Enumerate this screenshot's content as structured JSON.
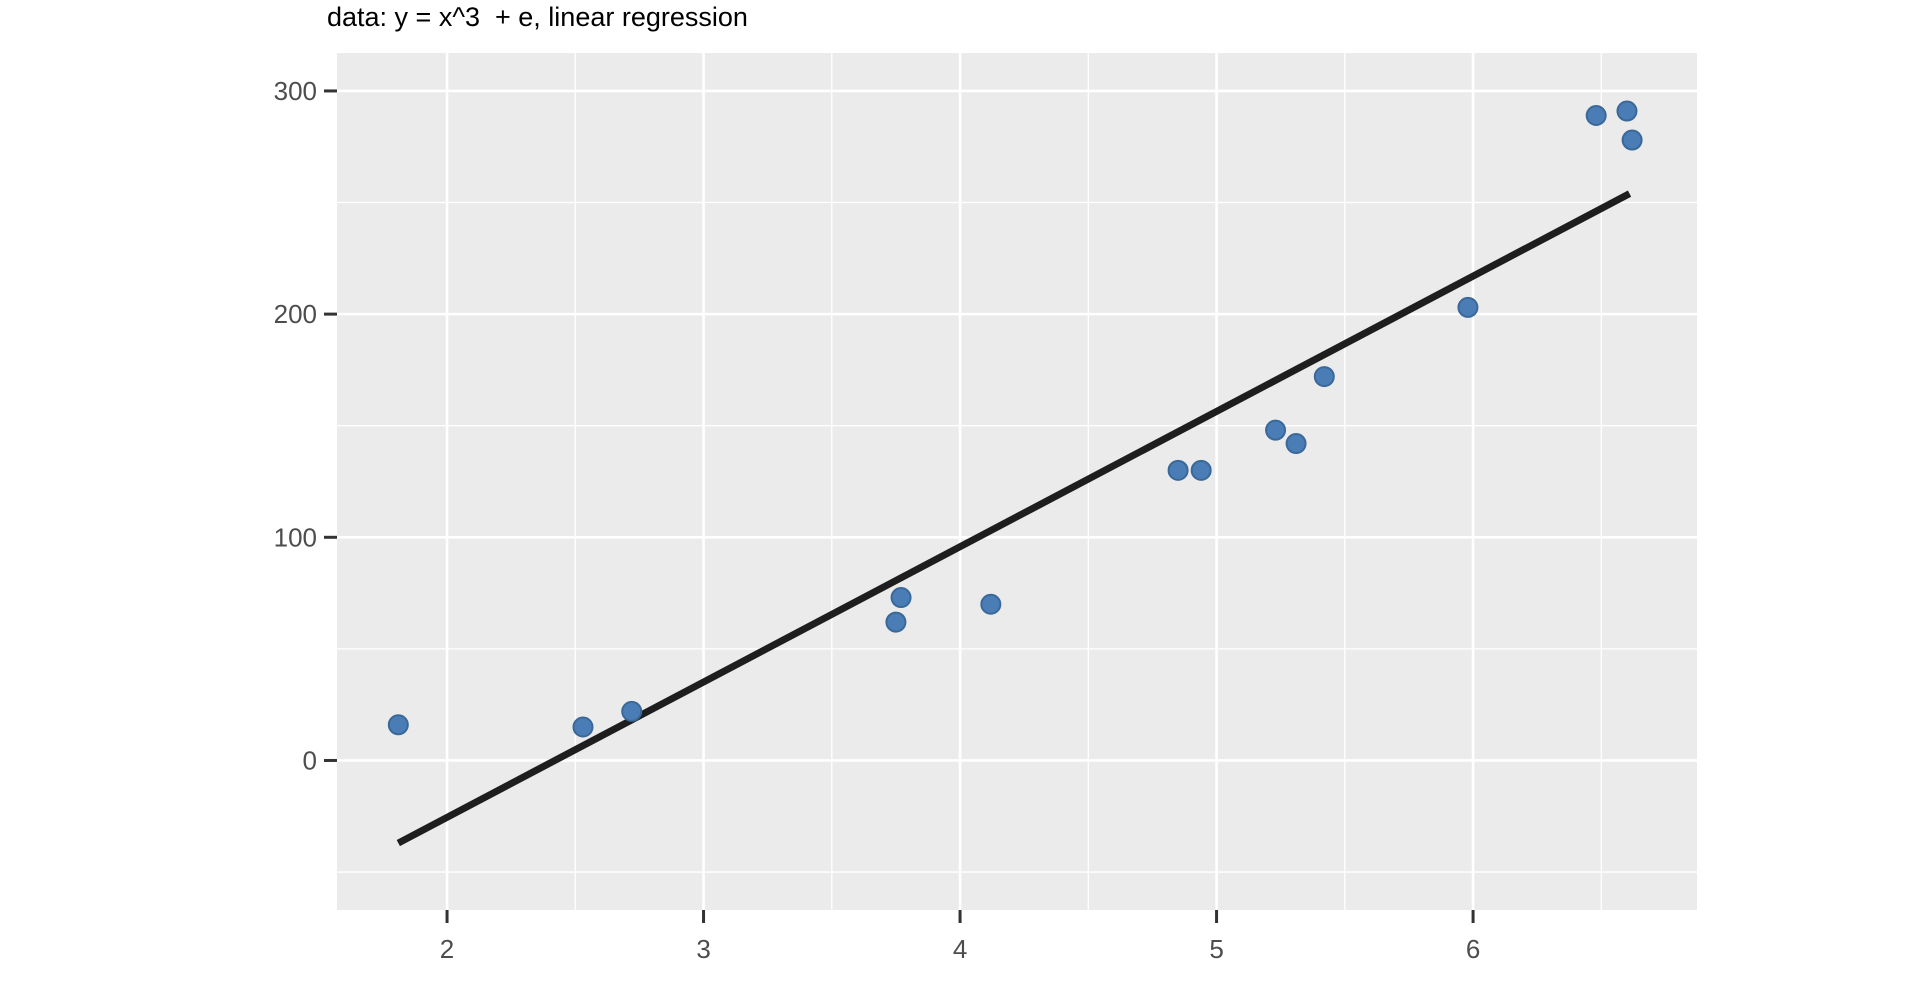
{
  "chart_data": {
    "type": "scatter",
    "title": "data: y = x^3  + e, linear regression",
    "xlabel": "",
    "ylabel": "",
    "x_tick_labels": [
      "2",
      "3",
      "4",
      "5",
      "6"
    ],
    "x_ticks": [
      2,
      3,
      4,
      5,
      6
    ],
    "x_minor_ticks": [
      2.5,
      3.5,
      4.5,
      5.5,
      6.5
    ],
    "y_tick_labels": [
      "0",
      "100",
      "200",
      "300"
    ],
    "y_ticks": [
      0,
      100,
      200,
      300
    ],
    "y_minor_ticks": [
      -50,
      50,
      150,
      250
    ],
    "xlim": [
      1.571,
      6.873
    ],
    "ylim": [
      -67,
      317
    ],
    "grid": "major-and-minor",
    "legend_position": "none",
    "points": [
      [
        1.81,
        16
      ],
      [
        2.53,
        15
      ],
      [
        2.72,
        22
      ],
      [
        3.75,
        62
      ],
      [
        3.77,
        73
      ],
      [
        4.12,
        70
      ],
      [
        4.85,
        130
      ],
      [
        4.94,
        130
      ],
      [
        5.23,
        148
      ],
      [
        5.31,
        142
      ],
      [
        5.42,
        172
      ],
      [
        5.98,
        203
      ],
      [
        6.48,
        289
      ],
      [
        6.6,
        291
      ],
      [
        6.62,
        278
      ]
    ],
    "regression_line": {
      "x1": 1.81,
      "y1": -37,
      "x2": 6.61,
      "y2": 254
    },
    "colors": {
      "panel_background": "#ebebeb",
      "gridline": "#ffffff",
      "point_fill": "#4a7db5",
      "point_stroke": "#3a6899",
      "line": "#1e1e1e",
      "tick_mark": "#333333",
      "tick_label": "#4d4d4d",
      "title": "#000000"
    }
  }
}
